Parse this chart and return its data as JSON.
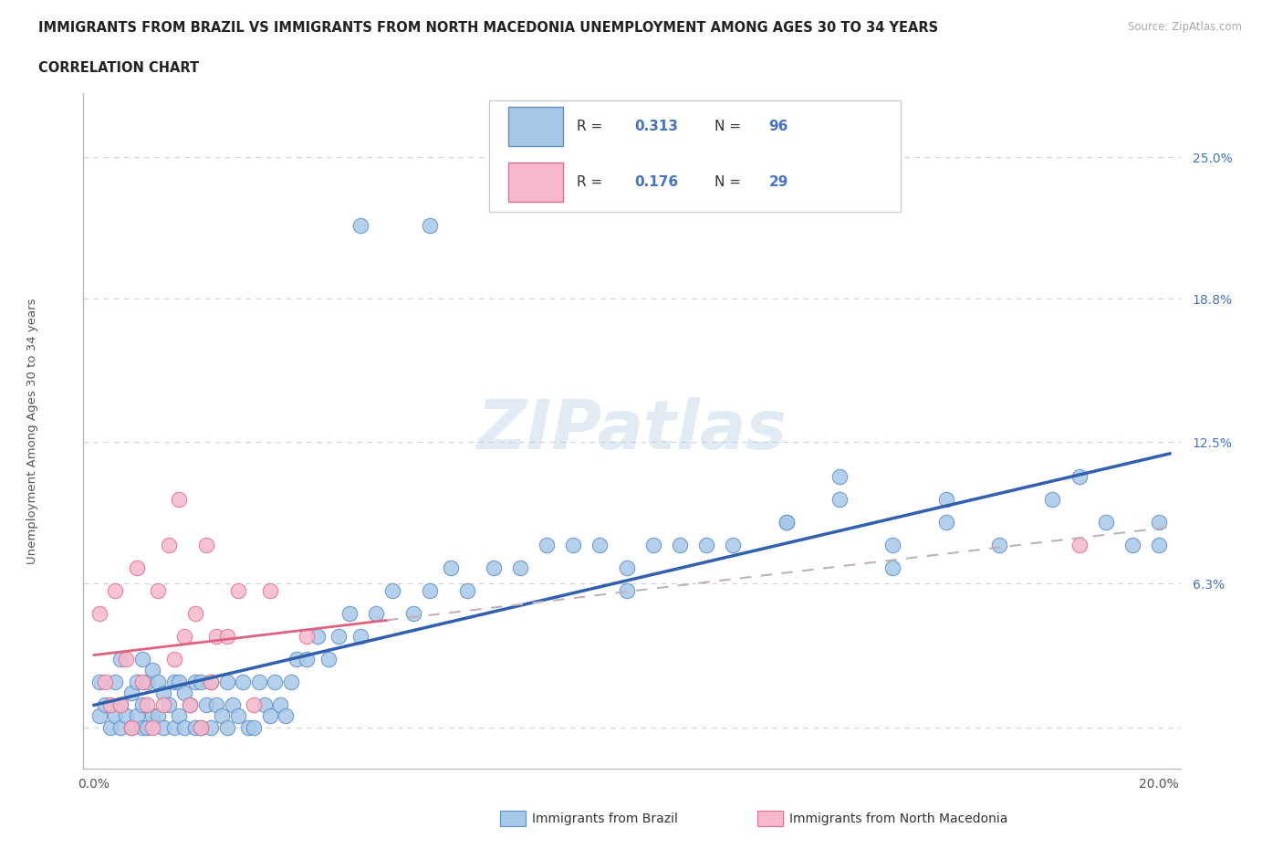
{
  "title_line1": "IMMIGRANTS FROM BRAZIL VS IMMIGRANTS FROM NORTH MACEDONIA UNEMPLOYMENT AMONG AGES 30 TO 34 YEARS",
  "title_line2": "CORRELATION CHART",
  "source_text": "Source: ZipAtlas.com",
  "ylabel": "Unemployment Among Ages 30 to 34 years",
  "xlim": [
    -0.002,
    0.204
  ],
  "ylim": [
    -0.018,
    0.278
  ],
  "brazil_R": "0.313",
  "brazil_N": "96",
  "macedonia_R": "0.176",
  "macedonia_N": "29",
  "brazil_dot_color": "#a8c8e8",
  "brazil_edge_color": "#6090c8",
  "brazil_line_color": "#3060b0",
  "macedonia_dot_color": "#f8b8cc",
  "macedonia_edge_color": "#e07090",
  "macedonia_line_color": "#e06080",
  "grid_color": "#cccccc",
  "ytick_color": "#4472c4",
  "ytick_positions": [
    0.0,
    0.063,
    0.125,
    0.188,
    0.25
  ],
  "ytick_labels": [
    "",
    "6.3%",
    "12.5%",
    "18.8%",
    "25.0%"
  ],
  "xtick_positions": [
    0.0,
    0.025,
    0.05,
    0.075,
    0.1,
    0.125,
    0.15,
    0.175,
    0.2
  ],
  "xtick_labels": [
    "0.0%",
    "",
    "",
    "",
    "",
    "",
    "",
    "",
    "20.0%"
  ],
  "brazil_x": [
    0.001,
    0.001,
    0.002,
    0.003,
    0.004,
    0.004,
    0.005,
    0.005,
    0.005,
    0.006,
    0.007,
    0.007,
    0.008,
    0.008,
    0.009,
    0.009,
    0.009,
    0.01,
    0.01,
    0.011,
    0.011,
    0.012,
    0.012,
    0.013,
    0.013,
    0.014,
    0.015,
    0.015,
    0.016,
    0.016,
    0.017,
    0.017,
    0.018,
    0.019,
    0.019,
    0.02,
    0.02,
    0.021,
    0.022,
    0.022,
    0.023,
    0.024,
    0.025,
    0.025,
    0.026,
    0.027,
    0.028,
    0.029,
    0.03,
    0.031,
    0.032,
    0.033,
    0.034,
    0.035,
    0.036,
    0.037,
    0.038,
    0.04,
    0.042,
    0.044,
    0.046,
    0.048,
    0.05,
    0.053,
    0.056,
    0.06,
    0.063,
    0.067,
    0.07,
    0.075,
    0.08,
    0.085,
    0.09,
    0.095,
    0.1,
    0.105,
    0.11,
    0.115,
    0.12,
    0.13,
    0.14,
    0.15,
    0.16,
    0.17,
    0.18,
    0.19,
    0.2,
    0.05,
    0.063,
    0.1,
    0.13,
    0.14,
    0.15,
    0.16,
    0.185,
    0.195,
    0.2
  ],
  "brazil_y": [
    0.02,
    0.005,
    0.01,
    0.0,
    0.005,
    0.02,
    0.0,
    0.01,
    0.03,
    0.005,
    0.0,
    0.015,
    0.005,
    0.02,
    0.0,
    0.01,
    0.03,
    0.0,
    0.02,
    0.005,
    0.025,
    0.005,
    0.02,
    0.0,
    0.015,
    0.01,
    0.0,
    0.02,
    0.005,
    0.02,
    0.0,
    0.015,
    0.01,
    0.0,
    0.02,
    0.0,
    0.02,
    0.01,
    0.0,
    0.02,
    0.01,
    0.005,
    0.0,
    0.02,
    0.01,
    0.005,
    0.02,
    0.0,
    0.0,
    0.02,
    0.01,
    0.005,
    0.02,
    0.01,
    0.005,
    0.02,
    0.03,
    0.03,
    0.04,
    0.03,
    0.04,
    0.05,
    0.04,
    0.05,
    0.06,
    0.05,
    0.06,
    0.07,
    0.06,
    0.07,
    0.07,
    0.08,
    0.08,
    0.08,
    0.07,
    0.08,
    0.08,
    0.08,
    0.08,
    0.09,
    0.1,
    0.07,
    0.09,
    0.08,
    0.1,
    0.09,
    0.09,
    0.22,
    0.22,
    0.06,
    0.09,
    0.11,
    0.08,
    0.1,
    0.11,
    0.08,
    0.08
  ],
  "macedonia_x": [
    0.001,
    0.002,
    0.003,
    0.004,
    0.005,
    0.006,
    0.007,
    0.008,
    0.009,
    0.01,
    0.011,
    0.012,
    0.013,
    0.014,
    0.015,
    0.016,
    0.017,
    0.018,
    0.019,
    0.02,
    0.021,
    0.022,
    0.023,
    0.025,
    0.027,
    0.03,
    0.033,
    0.04,
    0.185
  ],
  "macedonia_y": [
    0.05,
    0.02,
    0.01,
    0.06,
    0.01,
    0.03,
    0.0,
    0.07,
    0.02,
    0.01,
    0.0,
    0.06,
    0.01,
    0.08,
    0.03,
    0.1,
    0.04,
    0.01,
    0.05,
    0.0,
    0.08,
    0.02,
    0.04,
    0.04,
    0.06,
    0.01,
    0.06,
    0.04,
    0.08
  ]
}
